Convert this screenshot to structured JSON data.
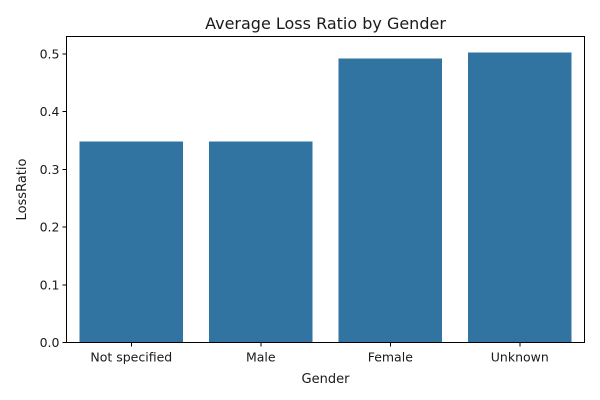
{
  "chart_data": {
    "type": "bar",
    "title": "Average Loss Ratio by Gender",
    "xlabel": "Gender",
    "ylabel": "LossRatio",
    "categories": [
      "Not specified",
      "Male",
      "Female",
      "Unknown"
    ],
    "values": [
      0.348,
      0.348,
      0.492,
      0.502
    ],
    "ylim": [
      0,
      0.53
    ],
    "yticks": [
      "0.0",
      "0.1",
      "0.2",
      "0.3",
      "0.4",
      "0.5"
    ],
    "bar_color": "#3274a1",
    "grid": false,
    "legend": "none"
  }
}
